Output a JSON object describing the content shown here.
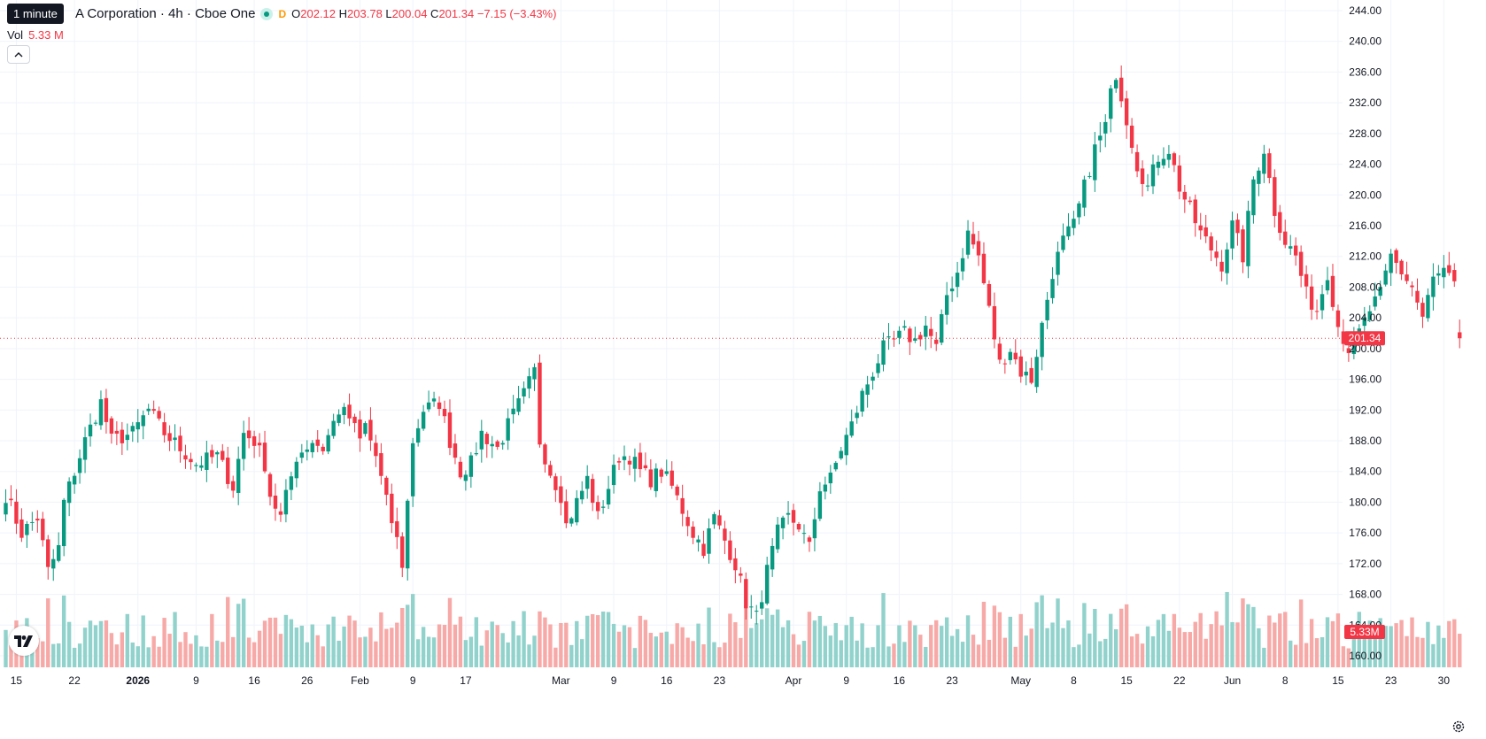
{
  "header": {
    "tooltip": "1 minute",
    "title": "A Corporation · 4h · Cboe One",
    "badge_letter": "D",
    "o_label": "O",
    "o_value": "202.12",
    "h_label": "H",
    "h_value": "203.78",
    "l_label": "L",
    "l_value": "200.04",
    "c_label": "C",
    "c_value": "201.34",
    "change": "−7.15 (−3.43%)",
    "vol_label": "Vol",
    "vol_value": "5.33 M"
  },
  "colors": {
    "up": "#089981",
    "down": "#f23645",
    "up_vol": "#92d2cc",
    "down_vol": "#f7a9a7",
    "grid": "#f0f3fa"
  },
  "icons": {
    "logo": "tradingview-logo-icon",
    "settings": "gear-icon",
    "collapse": "chevron-up-icon",
    "status": "market-status-dot-icon"
  },
  "chart_data": {
    "type": "candlestick",
    "timeframe": "4h",
    "ylim": [
      158,
      245
    ],
    "y_ticks": [
      "160.00",
      "164.00",
      "168.00",
      "172.00",
      "176.00",
      "180.00",
      "184.00",
      "188.00",
      "192.00",
      "196.00",
      "200.00",
      "204.00",
      "208.00",
      "212.00",
      "216.00",
      "220.00",
      "224.00",
      "228.00",
      "232.00",
      "236.00",
      "240.00",
      "244.00"
    ],
    "x_ticks": [
      {
        "label": "15",
        "i": 2
      },
      {
        "label": "22",
        "i": 13
      },
      {
        "label": "2026",
        "i": 25
      },
      {
        "label": "9",
        "i": 36
      },
      {
        "label": "16",
        "i": 47
      },
      {
        "label": "26",
        "i": 57
      },
      {
        "label": "Feb",
        "i": 67
      },
      {
        "label": "9",
        "i": 77
      },
      {
        "label": "17",
        "i": 87
      },
      {
        "label": "Mar",
        "i": 105
      },
      {
        "label": "9",
        "i": 115
      },
      {
        "label": "16",
        "i": 125
      },
      {
        "label": "23",
        "i": 135
      },
      {
        "label": "Apr",
        "i": 149
      },
      {
        "label": "9",
        "i": 159
      },
      {
        "label": "16",
        "i": 169
      },
      {
        "label": "23",
        "i": 179
      },
      {
        "label": "May",
        "i": 192
      },
      {
        "label": "8",
        "i": 202
      },
      {
        "label": "15",
        "i": 212
      },
      {
        "label": "22",
        "i": 222
      },
      {
        "label": "Jun",
        "i": 232
      },
      {
        "label": "8",
        "i": 242
      },
      {
        "label": "15",
        "i": 252
      },
      {
        "label": "23",
        "i": 262
      },
      {
        "label": "30",
        "i": 272
      }
    ],
    "last_price": 201.34,
    "last_price_label": "201.34",
    "last_volume_label": "5.33M",
    "volume_max_m": 16,
    "anchors": [
      [
        0,
        181
      ],
      [
        3,
        176
      ],
      [
        6,
        178
      ],
      [
        8,
        171
      ],
      [
        10,
        174
      ],
      [
        11,
        180
      ],
      [
        13,
        184
      ],
      [
        15,
        188
      ],
      [
        18,
        193
      ],
      [
        20,
        188
      ],
      [
        24,
        189
      ],
      [
        27,
        192
      ],
      [
        30,
        189
      ],
      [
        33,
        187
      ],
      [
        36,
        185
      ],
      [
        40,
        186
      ],
      [
        43,
        182
      ],
      [
        45,
        189
      ],
      [
        47,
        188
      ],
      [
        49,
        185
      ],
      [
        50,
        181
      ],
      [
        52,
        178
      ],
      [
        55,
        186
      ],
      [
        58,
        188
      ],
      [
        60,
        187
      ],
      [
        63,
        192
      ],
      [
        65,
        191
      ],
      [
        67,
        188
      ],
      [
        68,
        190
      ],
      [
        70,
        186
      ],
      [
        72,
        180
      ],
      [
        74,
        175
      ],
      [
        75,
        172
      ],
      [
        77,
        188
      ],
      [
        79,
        192
      ],
      [
        82,
        193
      ],
      [
        84,
        188
      ],
      [
        86,
        184
      ],
      [
        88,
        185
      ],
      [
        90,
        189
      ],
      [
        93,
        187
      ],
      [
        95,
        190
      ],
      [
        98,
        194
      ],
      [
        100,
        197
      ],
      [
        101,
        188
      ],
      [
        103,
        184
      ],
      [
        105,
        181
      ],
      [
        106,
        177
      ],
      [
        108,
        180
      ],
      [
        110,
        183
      ],
      [
        112,
        178
      ],
      [
        114,
        182
      ],
      [
        116,
        186
      ],
      [
        118,
        186
      ],
      [
        120,
        184
      ],
      [
        122,
        183
      ],
      [
        124,
        184
      ],
      [
        126,
        182
      ],
      [
        128,
        179
      ],
      [
        130,
        176
      ],
      [
        132,
        174
      ],
      [
        134,
        178
      ],
      [
        136,
        175
      ],
      [
        138,
        172
      ],
      [
        140,
        167
      ],
      [
        142,
        165
      ],
      [
        144,
        171
      ],
      [
        146,
        176
      ],
      [
        148,
        178
      ],
      [
        150,
        177
      ],
      [
        152,
        174
      ],
      [
        154,
        182
      ],
      [
        156,
        183
      ],
      [
        158,
        187
      ],
      [
        160,
        190
      ],
      [
        162,
        194
      ],
      [
        164,
        197
      ],
      [
        166,
        200
      ],
      [
        168,
        201
      ],
      [
        170,
        202
      ],
      [
        172,
        201
      ],
      [
        174,
        203
      ],
      [
        176,
        200
      ],
      [
        178,
        207
      ],
      [
        180,
        210
      ],
      [
        182,
        215
      ],
      [
        184,
        212
      ],
      [
        186,
        205
      ],
      [
        188,
        198
      ],
      [
        190,
        200
      ],
      [
        192,
        197
      ],
      [
        194,
        196
      ],
      [
        196,
        203
      ],
      [
        198,
        210
      ],
      [
        200,
        214
      ],
      [
        202,
        216
      ],
      [
        204,
        221
      ],
      [
        206,
        226
      ],
      [
        208,
        229
      ],
      [
        209,
        233
      ],
      [
        210,
        236
      ],
      [
        212,
        230
      ],
      [
        214,
        224
      ],
      [
        216,
        221
      ],
      [
        218,
        225
      ],
      [
        220,
        226
      ],
      [
        222,
        221
      ],
      [
        224,
        218
      ],
      [
        226,
        215
      ],
      [
        228,
        213
      ],
      [
        230,
        211
      ],
      [
        232,
        216
      ],
      [
        234,
        212
      ],
      [
        236,
        222
      ],
      [
        238,
        226
      ],
      [
        240,
        218
      ],
      [
        242,
        214
      ],
      [
        244,
        212
      ],
      [
        246,
        207
      ],
      [
        248,
        205
      ],
      [
        250,
        210
      ],
      [
        252,
        203
      ],
      [
        254,
        200
      ],
      [
        256,
        202
      ],
      [
        258,
        205
      ],
      [
        260,
        207
      ],
      [
        262,
        212
      ],
      [
        264,
        210
      ],
      [
        266,
        208
      ],
      [
        268,
        204
      ],
      [
        270,
        209
      ],
      [
        272,
        210
      ],
      [
        274,
        208
      ],
      [
        275,
        201.34
      ]
    ],
    "last_candle": {
      "o": 202.12,
      "h": 203.78,
      "l": 200.04,
      "c": 201.34,
      "vol_m": 5.33
    }
  }
}
